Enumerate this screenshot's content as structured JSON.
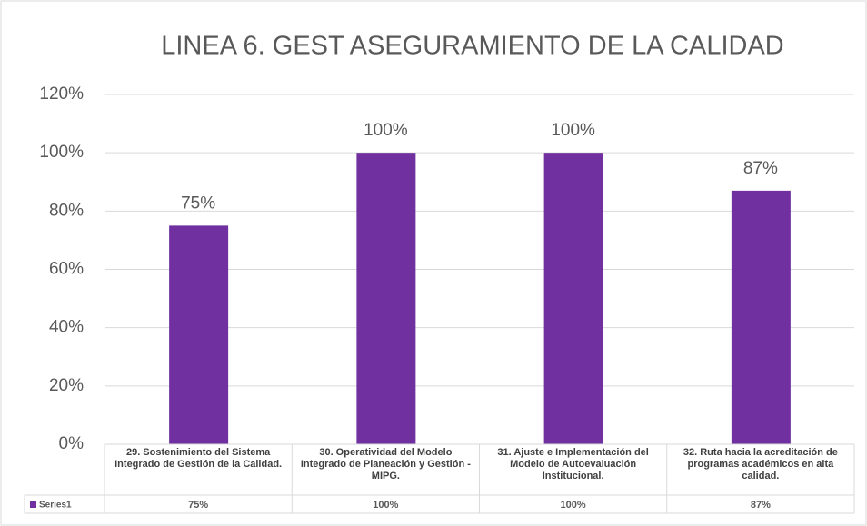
{
  "chart_data": {
    "type": "bar",
    "title": "LINEA 6.  GEST ASEGURAMIENTO DE LA CALIDAD",
    "categories": [
      "29. Sostenimiento del Sistema Integrado de Gestión de la Calidad.",
      "30. Operatividad del Modelo Integrado de Planeación y Gestión - MIPG.",
      "31. Ajuste e Implementación del Modelo de Autoevaluación Institucional.",
      "32. Ruta hacia la acreditación de programas académicos en alta calidad."
    ],
    "series": [
      {
        "name": "Series1",
        "color": "#7030a0",
        "values": [
          75,
          100,
          100,
          87
        ],
        "value_labels": [
          "75%",
          "100%",
          "100%",
          "87%"
        ]
      }
    ],
    "ylim": [
      0,
      120
    ],
    "yticks": [
      {
        "value": 0,
        "label": "0%"
      },
      {
        "value": 20,
        "label": "20%"
      },
      {
        "value": 40,
        "label": "40%"
      },
      {
        "value": 60,
        "label": "60%"
      },
      {
        "value": 80,
        "label": "80%"
      },
      {
        "value": 100,
        "label": "100%"
      },
      {
        "value": 120,
        "label": "120%"
      }
    ],
    "grid": true,
    "data_table": true
  }
}
